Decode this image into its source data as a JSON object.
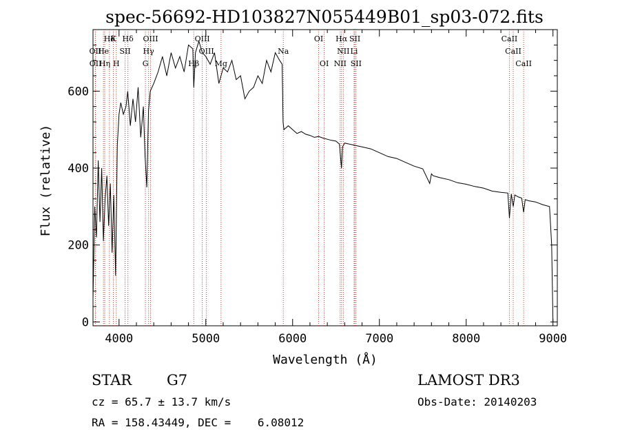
{
  "colors": {
    "ink": "#000000",
    "line_marker": "#c0392b",
    "background": "#ffffff"
  },
  "chart_data": {
    "type": "line",
    "title": "spec-56692-HD103827N055449B01_sp03-072.fits",
    "xlabel": "Wavelength (Å)",
    "ylabel": "Flux (relative)",
    "xlim": [
      3700,
      9050
    ],
    "ylim": [
      -10,
      760
    ],
    "xticks": [
      4000,
      5000,
      6000,
      7000,
      8000,
      9000
    ],
    "yticks": [
      0,
      200,
      400,
      600
    ],
    "grid": false,
    "series": [
      {
        "name": "spectrum",
        "x": [
          3700,
          3720,
          3740,
          3760,
          3780,
          3800,
          3820,
          3840,
          3860,
          3880,
          3900,
          3920,
          3940,
          3960,
          3980,
          4000,
          4020,
          4050,
          4080,
          4100,
          4130,
          4160,
          4190,
          4220,
          4250,
          4280,
          4300,
          4320,
          4340,
          4360,
          4400,
          4450,
          4500,
          4550,
          4600,
          4650,
          4700,
          4750,
          4800,
          4850,
          4861,
          4880,
          4920,
          4960,
          5000,
          5050,
          5100,
          5150,
          5200,
          5250,
          5300,
          5350,
          5400,
          5450,
          5500,
          5550,
          5600,
          5650,
          5700,
          5750,
          5800,
          5850,
          5880,
          5890,
          5900,
          5950,
          6000,
          6050,
          6100,
          6150,
          6200,
          6250,
          6300,
          6350,
          6400,
          6450,
          6500,
          6540,
          6555,
          6563,
          6575,
          6600,
          6700,
          6800,
          6900,
          7000,
          7100,
          7200,
          7300,
          7400,
          7500,
          7580,
          7600,
          7620,
          7700,
          7800,
          7900,
          8000,
          8100,
          8200,
          8300,
          8400,
          8480,
          8498,
          8520,
          8542,
          8560,
          8600,
          8640,
          8662,
          8680,
          8720,
          8800,
          8880,
          8960,
          8985,
          9000
        ],
        "y": [
          60,
          300,
          220,
          420,
          260,
          400,
          210,
          320,
          380,
          250,
          360,
          180,
          330,
          120,
          460,
          540,
          570,
          540,
          560,
          600,
          510,
          580,
          520,
          610,
          480,
          560,
          430,
          350,
          550,
          600,
          620,
          650,
          690,
          640,
          700,
          660,
          690,
          650,
          720,
          710,
          610,
          700,
          730,
          700,
          690,
          670,
          700,
          620,
          660,
          650,
          680,
          630,
          640,
          580,
          600,
          610,
          640,
          620,
          680,
          650,
          700,
          680,
          670,
          520,
          500,
          510,
          500,
          490,
          495,
          488,
          485,
          480,
          482,
          478,
          475,
          472,
          470,
          462,
          420,
          400,
          455,
          465,
          460,
          455,
          450,
          440,
          430,
          425,
          415,
          405,
          398,
          360,
          385,
          380,
          375,
          370,
          362,
          358,
          352,
          348,
          340,
          337,
          335,
          270,
          333,
          300,
          330,
          325,
          322,
          285,
          318,
          315,
          312,
          305,
          300,
          200,
          0
        ]
      }
    ],
    "spectral_lines": [
      {
        "label": "Hδ",
        "x": 3889,
        "tier": 0
      },
      {
        "label": "K",
        "x": 3934,
        "tier": 0
      },
      {
        "label": "Hδ",
        "x": 4102,
        "tier": 0
      },
      {
        "label": "OIII",
        "x": 4363,
        "tier": 0
      },
      {
        "label": "OIII",
        "x": 4959,
        "tier": 0
      },
      {
        "label": "OI",
        "x": 6300,
        "tier": 0
      },
      {
        "label": "Hα",
        "x": 6563,
        "tier": 0
      },
      {
        "label": "SII",
        "x": 6717,
        "tier": 0
      },
      {
        "label": "CaII",
        "x": 8498,
        "tier": 0
      },
      {
        "label": "OII",
        "x": 3727,
        "tier": 1
      },
      {
        "label": "He",
        "x": 3820,
        "tier": 1
      },
      {
        "label": "SII",
        "x": 4070,
        "tier": 1
      },
      {
        "label": "Hγ",
        "x": 4340,
        "tier": 1
      },
      {
        "label": "OIII",
        "x": 5007,
        "tier": 1
      },
      {
        "label": "Na",
        "x": 5893,
        "tier": 1
      },
      {
        "label": "NII",
        "x": 6584,
        "tier": 1
      },
      {
        "label": "Li",
        "x": 6708,
        "tier": 1
      },
      {
        "label": "CaII",
        "x": 8542,
        "tier": 1
      },
      {
        "label": "OII",
        "x": 3729,
        "tier": 2
      },
      {
        "label": "Hη",
        "x": 3835,
        "tier": 2
      },
      {
        "label": "H",
        "x": 3968,
        "tier": 2
      },
      {
        "label": "G",
        "x": 4304,
        "tier": 2
      },
      {
        "label": "Hβ",
        "x": 4861,
        "tier": 2
      },
      {
        "label": "Mg",
        "x": 5175,
        "tier": 2
      },
      {
        "label": "OI",
        "x": 6364,
        "tier": 2
      },
      {
        "label": "NII",
        "x": 6548,
        "tier": 2
      },
      {
        "label": "SII",
        "x": 6731,
        "tier": 2
      },
      {
        "label": "CaII",
        "x": 8662,
        "tier": 2
      }
    ],
    "extra_line_positions": [
      4070,
      4304,
      4340,
      4363,
      4861,
      4959,
      5007,
      5175,
      5893,
      6300,
      6364,
      6548,
      6563,
      6584,
      6708,
      6717,
      6731,
      8498,
      8542,
      8662
    ]
  },
  "info": {
    "class_label": "STAR",
    "subclass": "G7",
    "survey": "LAMOST DR3",
    "cz_text": "cz = 65.7 ± 13.7 km/s",
    "obs_date_text": "Obs-Date: 20140203",
    "radec_text": "RA = 158.43449, DEC =    6.08012"
  }
}
